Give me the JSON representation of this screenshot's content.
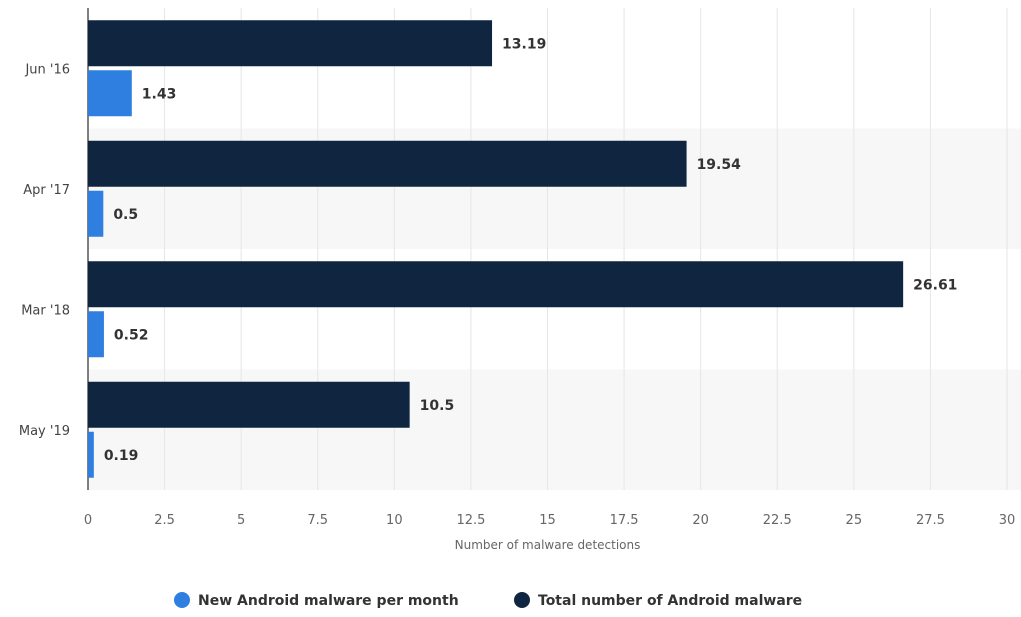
{
  "chart_data": {
    "type": "bar",
    "orientation": "horizontal",
    "categories": [
      "Jun '16",
      "Apr '17",
      "Mar '18",
      "May '19"
    ],
    "series": [
      {
        "name": "Total number of Android malware",
        "color": "#0f2540",
        "values": [
          13.19,
          19.54,
          26.61,
          10.5
        ]
      },
      {
        "name": "New Android malware per month",
        "color": "#2f7fe0",
        "values": [
          1.43,
          0.5,
          0.52,
          0.19
        ]
      }
    ],
    "xlabel": "Number of malware detections",
    "ylabel": "",
    "xlim": [
      0,
      30
    ],
    "x_ticks": [
      "0",
      "2.5",
      "5",
      "7.5",
      "10",
      "12.5",
      "15",
      "17.5",
      "20",
      "22.5",
      "25",
      "27.5",
      "30"
    ],
    "grid": true,
    "legend_position": "bottom",
    "legend": [
      {
        "label": "New Android malware per month",
        "color": "#2f7fe0"
      },
      {
        "label": "Total number of Android malware",
        "color": "#0f2540"
      }
    ]
  }
}
